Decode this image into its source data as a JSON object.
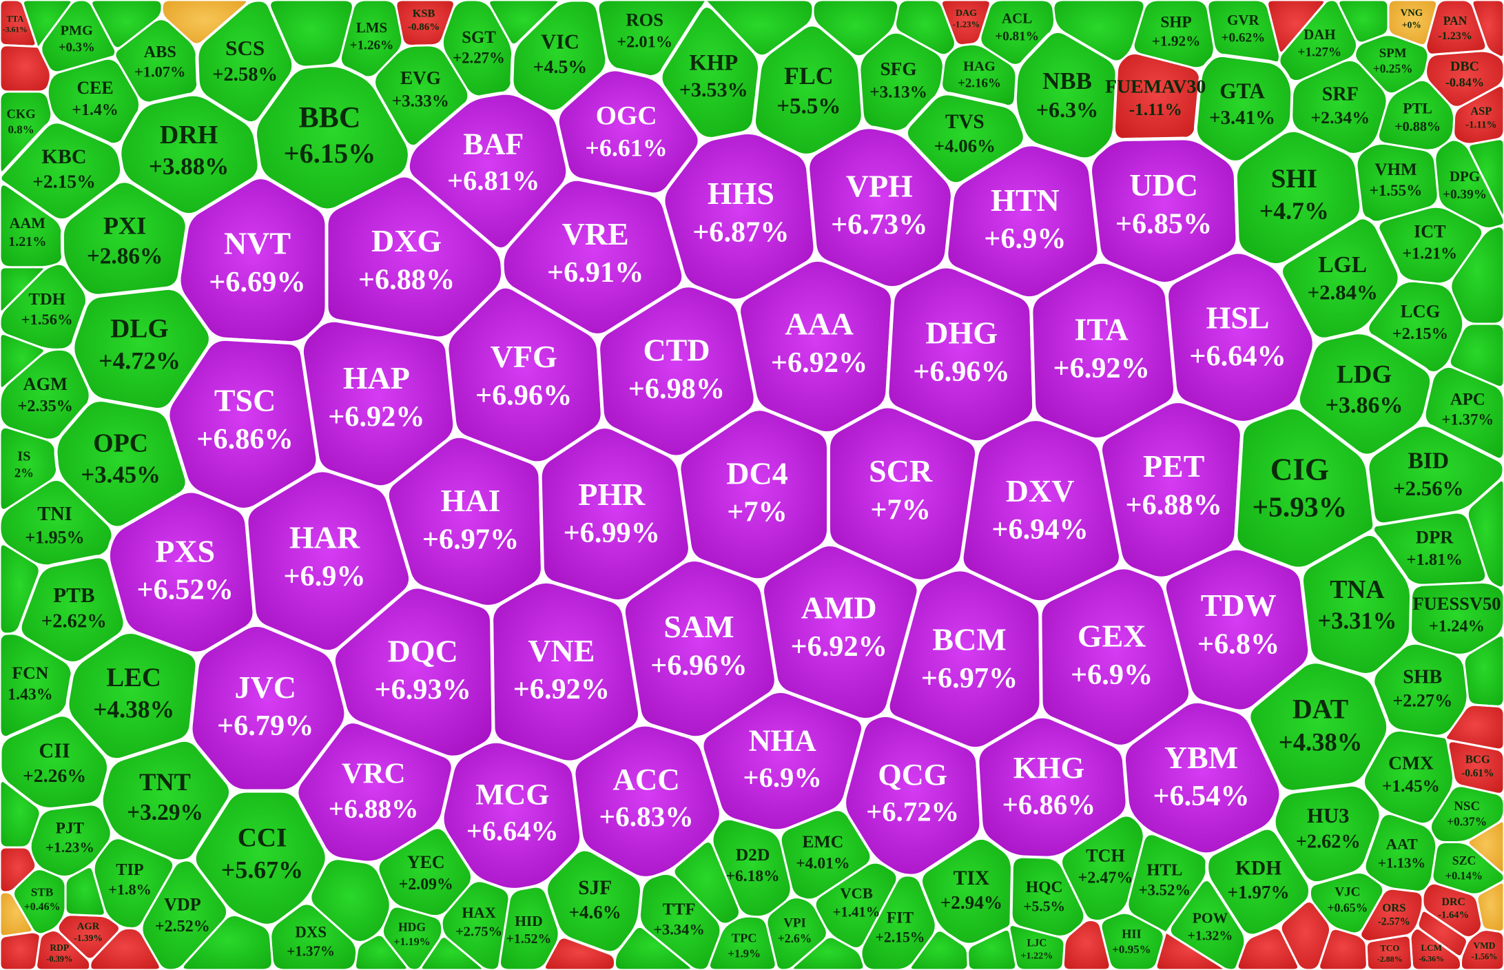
{
  "chart_data": {
    "type": "heatmap",
    "colors": {
      "limit_up": "#c21fe0",
      "up": "#1ec81e",
      "down": "#e23434",
      "flat": "#f2b43c"
    },
    "cells": [
      {
        "ticker": "TTA",
        "change": "-3.61%"
      },
      {
        "ticker": "PMG",
        "change": "+0.3%"
      },
      {
        "ticker": "ABS",
        "change": "+1.07%"
      },
      {
        "ticker": "SCS",
        "change": "+2.58%"
      },
      {
        "ticker": "SGT",
        "change": "+2.27%"
      },
      {
        "ticker": "VIC",
        "change": "+4.5%"
      },
      {
        "ticker": "ROS",
        "change": "+2.01%"
      },
      {
        "ticker": "LMS",
        "change": "+1.26%"
      },
      {
        "ticker": "KSB",
        "change": "-0.86%"
      },
      {
        "ticker": "KHP",
        "change": "+3.53%"
      },
      {
        "ticker": "FLC",
        "change": "+5.5%"
      },
      {
        "ticker": "SFG",
        "change": "+3.13%"
      },
      {
        "ticker": "DAG",
        "change": "-1.23%"
      },
      {
        "ticker": "ACL",
        "change": "+0.81%"
      },
      {
        "ticker": "NBB",
        "change": "+6.3%"
      },
      {
        "ticker": "SHP",
        "change": "+1.92%"
      },
      {
        "ticker": "GVR",
        "change": "+0.62%"
      },
      {
        "ticker": "DAH",
        "change": "+1.27%"
      },
      {
        "ticker": "VNG",
        "change": "+0%"
      },
      {
        "ticker": "PAN",
        "change": "-1.23%"
      },
      {
        "ticker": "CEE",
        "change": "+1.4%"
      },
      {
        "ticker": "BBC",
        "change": "+6.15%"
      },
      {
        "ticker": "DRH",
        "change": "+3.88%"
      },
      {
        "ticker": "CKG",
        "change": "0.8%"
      },
      {
        "ticker": "KBC",
        "change": "+2.15%"
      },
      {
        "ticker": "EVG",
        "change": "+3.33%"
      },
      {
        "ticker": "HAG",
        "change": "+2.16%"
      },
      {
        "ticker": "TVS",
        "change": "+4.06%"
      },
      {
        "ticker": "FUEMAV30",
        "change": "-1.11%"
      },
      {
        "ticker": "GTA",
        "change": "+3.41%"
      },
      {
        "ticker": "SRF",
        "change": "+2.34%"
      },
      {
        "ticker": "SPM",
        "change": "+0.25%"
      },
      {
        "ticker": "DBC",
        "change": "-0.84%"
      },
      {
        "ticker": "PTL",
        "change": "+0.88%"
      },
      {
        "ticker": "ASP",
        "change": "-1.11%"
      },
      {
        "ticker": "OGC",
        "change": "+6.61%"
      },
      {
        "ticker": "BAF",
        "change": "+6.81%"
      },
      {
        "ticker": "HHS",
        "change": "+6.87%"
      },
      {
        "ticker": "VPH",
        "change": "+6.73%"
      },
      {
        "ticker": "HTN",
        "change": "+6.9%"
      },
      {
        "ticker": "UDC",
        "change": "+6.85%"
      },
      {
        "ticker": "SHI",
        "change": "+4.7%"
      },
      {
        "ticker": "VHM",
        "change": "+1.55%"
      },
      {
        "ticker": "DPG",
        "change": "+0.39%"
      },
      {
        "ticker": "AAM",
        "change": "1.21%"
      },
      {
        "ticker": "PXI",
        "change": "+2.86%"
      },
      {
        "ticker": "NVT",
        "change": "+6.69%"
      },
      {
        "ticker": "DXG",
        "change": "+6.88%"
      },
      {
        "ticker": "VRE",
        "change": "+6.91%"
      },
      {
        "ticker": "ICT",
        "change": "+1.21%"
      },
      {
        "ticker": "LGL",
        "change": "+2.84%"
      },
      {
        "ticker": "TDH",
        "change": "+1.56%"
      },
      {
        "ticker": "DLG",
        "change": "+4.72%"
      },
      {
        "ticker": "AAA",
        "change": "+6.92%"
      },
      {
        "ticker": "DHG",
        "change": "+6.96%"
      },
      {
        "ticker": "ITA",
        "change": "+6.92%"
      },
      {
        "ticker": "HSL",
        "change": "+6.64%"
      },
      {
        "ticker": "LCG",
        "change": "+2.15%"
      },
      {
        "ticker": "AGM",
        "change": "+2.35%"
      },
      {
        "ticker": "HAP",
        "change": "+6.92%"
      },
      {
        "ticker": "VFG",
        "change": "+6.96%"
      },
      {
        "ticker": "CTD",
        "change": "+6.98%"
      },
      {
        "ticker": "LDG",
        "change": "+3.86%"
      },
      {
        "ticker": "APC",
        "change": "+1.37%"
      },
      {
        "ticker": "TSC",
        "change": "+6.86%"
      },
      {
        "ticker": "IS",
        "change": "2%"
      },
      {
        "ticker": "OPC",
        "change": "+3.45%"
      },
      {
        "ticker": "BID",
        "change": "+2.56%"
      },
      {
        "ticker": "HAI",
        "change": "+6.97%"
      },
      {
        "ticker": "PHR",
        "change": "+6.99%"
      },
      {
        "ticker": "DC4",
        "change": "+7%"
      },
      {
        "ticker": "SCR",
        "change": "+7%"
      },
      {
        "ticker": "DXV",
        "change": "+6.94%"
      },
      {
        "ticker": "PET",
        "change": "+6.88%"
      },
      {
        "ticker": "CIG",
        "change": "+5.93%"
      },
      {
        "ticker": "TNI",
        "change": "+1.95%"
      },
      {
        "ticker": "PXS",
        "change": "+6.52%"
      },
      {
        "ticker": "HAR",
        "change": "+6.9%"
      },
      {
        "ticker": "DPR",
        "change": "+1.81%"
      },
      {
        "ticker": "PTB",
        "change": "+2.62%"
      },
      {
        "ticker": "AMD",
        "change": "+6.92%"
      },
      {
        "ticker": "SAM",
        "change": "+6.96%"
      },
      {
        "ticker": "VNE",
        "change": "+6.92%"
      },
      {
        "ticker": "DQC",
        "change": "+6.93%"
      },
      {
        "ticker": "BCM",
        "change": "+6.97%"
      },
      {
        "ticker": "GEX",
        "change": "+6.9%"
      },
      {
        "ticker": "TDW",
        "change": "+6.8%"
      },
      {
        "ticker": "TNA",
        "change": "+3.31%"
      },
      {
        "ticker": "FUESSV50",
        "change": "+1.24%"
      },
      {
        "ticker": "FCN",
        "change": "1.43%"
      },
      {
        "ticker": "LEC",
        "change": "+4.38%"
      },
      {
        "ticker": "JVC",
        "change": "+6.79%"
      },
      {
        "ticker": "SHB",
        "change": "+2.27%"
      },
      {
        "ticker": "DAT",
        "change": "+4.38%"
      },
      {
        "ticker": "CII",
        "change": "+2.26%"
      },
      {
        "ticker": "NHA",
        "change": "+6.9%"
      },
      {
        "ticker": "VRC",
        "change": "+6.88%"
      },
      {
        "ticker": "MCG",
        "change": "+6.64%"
      },
      {
        "ticker": "ACC",
        "change": "+6.83%"
      },
      {
        "ticker": "QCG",
        "change": "+6.72%"
      },
      {
        "ticker": "KHG",
        "change": "+6.86%"
      },
      {
        "ticker": "YBM",
        "change": "+6.54%"
      },
      {
        "ticker": "BCG",
        "change": "-0.61%"
      },
      {
        "ticker": "CMX",
        "change": "+1.45%"
      },
      {
        "ticker": "TNT",
        "change": "+3.29%"
      },
      {
        "ticker": "NSC",
        "change": "+0.37%"
      },
      {
        "ticker": "HU3",
        "change": "+2.62%"
      },
      {
        "ticker": "CCI",
        "change": "+5.67%"
      },
      {
        "ticker": "PJT",
        "change": "+1.23%"
      },
      {
        "ticker": "D2D",
        "change": "+6.18%"
      },
      {
        "ticker": "EMC",
        "change": "+4.01%"
      },
      {
        "ticker": "AAT",
        "change": "+1.13%"
      },
      {
        "ticker": "SZC",
        "change": "+0.14%"
      },
      {
        "ticker": "TIP",
        "change": "+1.8%"
      },
      {
        "ticker": "STB",
        "change": "+0.46%"
      },
      {
        "ticker": "TCH",
        "change": "+2.47%"
      },
      {
        "ticker": "HTL",
        "change": "+3.52%"
      },
      {
        "ticker": "KDH",
        "change": "+1.97%"
      },
      {
        "ticker": "VJC",
        "change": "+0.65%"
      },
      {
        "ticker": "YEC",
        "change": "+2.09%"
      },
      {
        "ticker": "VCB",
        "change": "+1.41%"
      },
      {
        "ticker": "TIX",
        "change": "+2.94%"
      },
      {
        "ticker": "HQC",
        "change": "+5.5%"
      },
      {
        "ticker": "VDP",
        "change": "+2.52%"
      },
      {
        "ticker": "HAX",
        "change": "+2.75%"
      },
      {
        "ticker": "HDG",
        "change": "+1.19%"
      },
      {
        "ticker": "SJF",
        "change": "+4.6%"
      },
      {
        "ticker": "TTF",
        "change": "+3.34%"
      },
      {
        "ticker": "FIT",
        "change": "+2.15%"
      },
      {
        "ticker": "POW",
        "change": "+1.32%"
      },
      {
        "ticker": "ORS",
        "change": "-2.57%"
      },
      {
        "ticker": "DRC",
        "change": "-1.64%"
      },
      {
        "ticker": "VPI",
        "change": "+2.6%"
      },
      {
        "ticker": "HII",
        "change": "+0.95%"
      },
      {
        "ticker": "DXS",
        "change": "+1.37%"
      },
      {
        "ticker": "HID",
        "change": "+1.52%"
      },
      {
        "ticker": "TPC",
        "change": "+1.9%"
      },
      {
        "ticker": "LJC",
        "change": "+1.22%"
      },
      {
        "ticker": "LCM",
        "change": "-6.36%"
      },
      {
        "ticker": "VMD",
        "change": "-1.56%"
      },
      {
        "ticker": "AGR",
        "change": "-1.39%"
      },
      {
        "ticker": "TCO",
        "change": "-2.88%"
      },
      {
        "ticker": "RDP",
        "change": "-0.39%"
      }
    ]
  }
}
